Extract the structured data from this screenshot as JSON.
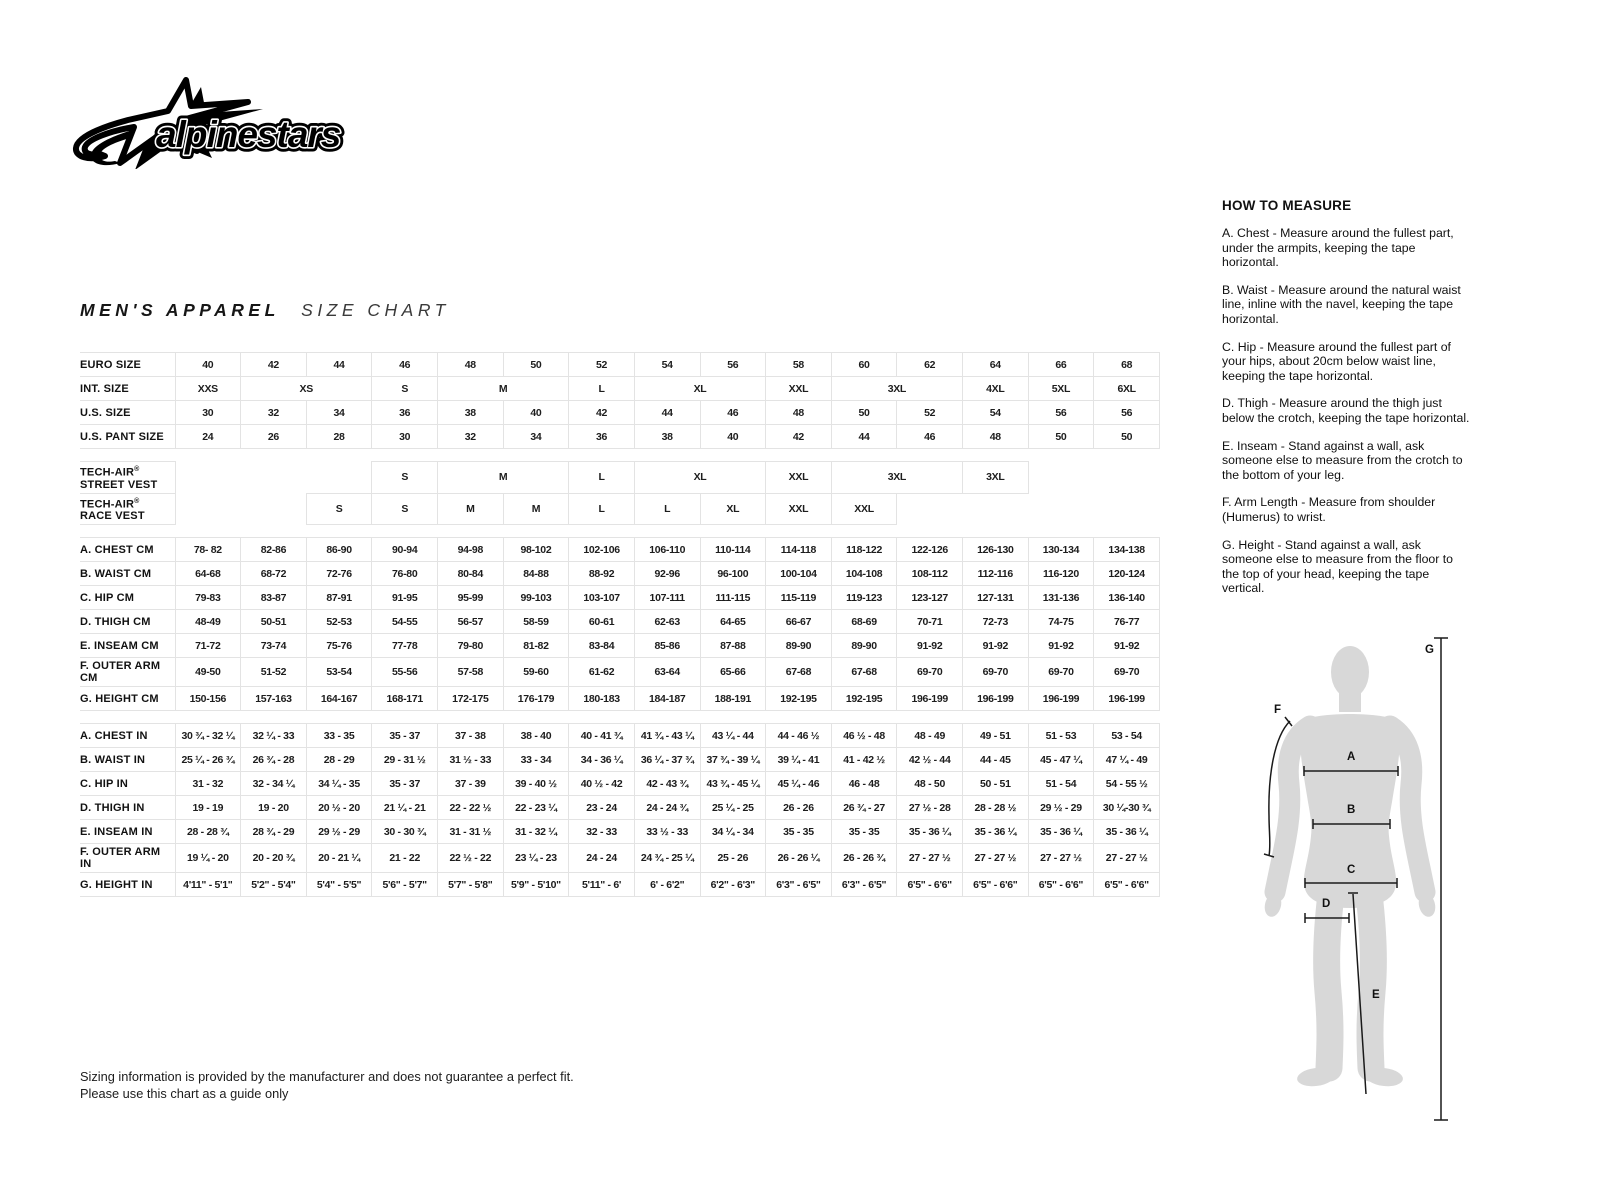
{
  "brand": {
    "logo_text": "alpinestars"
  },
  "title": {
    "main": "MEN'S APPAREL",
    "sub": "SIZE CHART"
  },
  "size_table": {
    "rows": [
      {
        "label": "EURO SIZE",
        "cells": [
          {
            "t": "40"
          },
          {
            "t": "42"
          },
          {
            "t": "44"
          },
          {
            "t": "46"
          },
          {
            "t": "48"
          },
          {
            "t": "50"
          },
          {
            "t": "52"
          },
          {
            "t": "54"
          },
          {
            "t": "56"
          },
          {
            "t": "58"
          },
          {
            "t": "60"
          },
          {
            "t": "62"
          },
          {
            "t": "64"
          },
          {
            "t": "66"
          },
          {
            "t": "68"
          }
        ]
      },
      {
        "label": "INT. SIZE",
        "cells": [
          {
            "t": "XXS"
          },
          {
            "t": "XS",
            "span": 2
          },
          {
            "t": "S"
          },
          {
            "t": "M",
            "span": 2
          },
          {
            "t": "L"
          },
          {
            "t": "XL",
            "span": 2
          },
          {
            "t": "XXL"
          },
          {
            "t": "3XL",
            "span": 2
          },
          {
            "t": "4XL"
          },
          {
            "t": "5XL"
          },
          {
            "t": "6XL"
          }
        ]
      },
      {
        "label": "U.S. SIZE",
        "cells": [
          {
            "t": "30"
          },
          {
            "t": "32"
          },
          {
            "t": "34"
          },
          {
            "t": "36"
          },
          {
            "t": "38"
          },
          {
            "t": "40"
          },
          {
            "t": "42"
          },
          {
            "t": "44"
          },
          {
            "t": "46"
          },
          {
            "t": "48"
          },
          {
            "t": "50"
          },
          {
            "t": "52"
          },
          {
            "t": "54"
          },
          {
            "t": "56"
          },
          {
            "t": "56"
          }
        ]
      },
      {
        "label": "U.S. PANT SIZE",
        "cells": [
          {
            "t": "24"
          },
          {
            "t": "26"
          },
          {
            "t": "28"
          },
          {
            "t": "30"
          },
          {
            "t": "32"
          },
          {
            "t": "34"
          },
          {
            "t": "36"
          },
          {
            "t": "38"
          },
          {
            "t": "40"
          },
          {
            "t": "42"
          },
          {
            "t": "44"
          },
          {
            "t": "46"
          },
          {
            "t": "48"
          },
          {
            "t": "50"
          },
          {
            "t": "50"
          }
        ]
      },
      {
        "gap": true
      },
      {
        "label": "TECH-AIR® STREET VEST",
        "cells": [
          {
            "t": "",
            "span": 3,
            "blank": true
          },
          {
            "t": "S"
          },
          {
            "t": "M",
            "span": 2
          },
          {
            "t": "L"
          },
          {
            "t": "XL",
            "span": 2
          },
          {
            "t": "XXL"
          },
          {
            "t": "3XL",
            "span": 2
          },
          {
            "t": "3XL"
          },
          {
            "t": "",
            "blank": true
          },
          {
            "t": "",
            "blank": true
          }
        ]
      },
      {
        "label": "TECH-AIR® RACE VEST",
        "cells": [
          {
            "t": "",
            "span": 2,
            "blank": true
          },
          {
            "t": "S"
          },
          {
            "t": "S"
          },
          {
            "t": "M"
          },
          {
            "t": "M"
          },
          {
            "t": "L"
          },
          {
            "t": "L"
          },
          {
            "t": "XL"
          },
          {
            "t": "XXL"
          },
          {
            "t": "XXL"
          },
          {
            "t": "",
            "span": 4,
            "blank": true
          }
        ]
      },
      {
        "gap": true
      },
      {
        "label": "A. CHEST CM",
        "cells": [
          {
            "t": "78- 82"
          },
          {
            "t": "82-86"
          },
          {
            "t": "86-90"
          },
          {
            "t": "90-94"
          },
          {
            "t": "94-98"
          },
          {
            "t": "98-102"
          },
          {
            "t": "102-106"
          },
          {
            "t": "106-110"
          },
          {
            "t": "110-114"
          },
          {
            "t": "114-118"
          },
          {
            "t": "118-122"
          },
          {
            "t": "122-126"
          },
          {
            "t": "126-130"
          },
          {
            "t": "130-134"
          },
          {
            "t": "134-138"
          }
        ]
      },
      {
        "label": "B. WAIST CM",
        "cells": [
          {
            "t": "64-68"
          },
          {
            "t": "68-72"
          },
          {
            "t": "72-76"
          },
          {
            "t": "76-80"
          },
          {
            "t": "80-84"
          },
          {
            "t": "84-88"
          },
          {
            "t": "88-92"
          },
          {
            "t": "92-96"
          },
          {
            "t": "96-100"
          },
          {
            "t": "100-104"
          },
          {
            "t": "104-108"
          },
          {
            "t": "108-112"
          },
          {
            "t": "112-116"
          },
          {
            "t": "116-120"
          },
          {
            "t": "120-124"
          }
        ]
      },
      {
        "label": "C. HIP CM",
        "cells": [
          {
            "t": "79-83"
          },
          {
            "t": "83-87"
          },
          {
            "t": "87-91"
          },
          {
            "t": "91-95"
          },
          {
            "t": "95-99"
          },
          {
            "t": "99-103"
          },
          {
            "t": "103-107"
          },
          {
            "t": "107-111"
          },
          {
            "t": "111-115"
          },
          {
            "t": "115-119"
          },
          {
            "t": "119-123"
          },
          {
            "t": "123-127"
          },
          {
            "t": "127-131"
          },
          {
            "t": "131-136"
          },
          {
            "t": "136-140"
          }
        ]
      },
      {
        "label": "D. THIGH CM",
        "cells": [
          {
            "t": "48-49"
          },
          {
            "t": "50-51"
          },
          {
            "t": "52-53"
          },
          {
            "t": "54-55"
          },
          {
            "t": "56-57"
          },
          {
            "t": "58-59"
          },
          {
            "t": "60-61"
          },
          {
            "t": "62-63"
          },
          {
            "t": "64-65"
          },
          {
            "t": "66-67"
          },
          {
            "t": "68-69"
          },
          {
            "t": "70-71"
          },
          {
            "t": "72-73"
          },
          {
            "t": "74-75"
          },
          {
            "t": "76-77"
          }
        ]
      },
      {
        "label": "E. INSEAM CM",
        "cells": [
          {
            "t": "71-72"
          },
          {
            "t": "73-74"
          },
          {
            "t": "75-76"
          },
          {
            "t": "77-78"
          },
          {
            "t": "79-80"
          },
          {
            "t": "81-82"
          },
          {
            "t": "83-84"
          },
          {
            "t": "85-86"
          },
          {
            "t": "87-88"
          },
          {
            "t": "89-90"
          },
          {
            "t": "89-90"
          },
          {
            "t": "91-92"
          },
          {
            "t": "91-92"
          },
          {
            "t": "91-92"
          },
          {
            "t": "91-92"
          }
        ]
      },
      {
        "label": "F. OUTER ARM CM",
        "cells": [
          {
            "t": "49-50"
          },
          {
            "t": "51-52"
          },
          {
            "t": "53-54"
          },
          {
            "t": "55-56"
          },
          {
            "t": "57-58"
          },
          {
            "t": "59-60"
          },
          {
            "t": "61-62"
          },
          {
            "t": "63-64"
          },
          {
            "t": "65-66"
          },
          {
            "t": "67-68"
          },
          {
            "t": "67-68"
          },
          {
            "t": "69-70"
          },
          {
            "t": "69-70"
          },
          {
            "t": "69-70"
          },
          {
            "t": "69-70"
          }
        ]
      },
      {
        "label": "G. HEIGHT CM",
        "cells": [
          {
            "t": "150-156"
          },
          {
            "t": "157-163"
          },
          {
            "t": "164-167"
          },
          {
            "t": "168-171"
          },
          {
            "t": "172-175"
          },
          {
            "t": "176-179"
          },
          {
            "t": "180-183"
          },
          {
            "t": "184-187"
          },
          {
            "t": "188-191"
          },
          {
            "t": "192-195"
          },
          {
            "t": "192-195"
          },
          {
            "t": "196-199"
          },
          {
            "t": "196-199"
          },
          {
            "t": "196-199"
          },
          {
            "t": "196-199"
          }
        ]
      },
      {
        "gap": true
      },
      {
        "label": "A. CHEST IN",
        "cells": [
          {
            "t": "30 ¾ - 32 ¼"
          },
          {
            "t": "32 ¼ - 33"
          },
          {
            "t": "33  - 35"
          },
          {
            "t": "35  - 37"
          },
          {
            "t": "37 - 38"
          },
          {
            "t": "38  - 40"
          },
          {
            "t": "40  - 41 ¾"
          },
          {
            "t": "41 ¾ - 43 ¼"
          },
          {
            "t": "43 ¼ - 44"
          },
          {
            "t": "44  - 46 ½"
          },
          {
            "t": "46 ½ - 48"
          },
          {
            "t": "48 - 49"
          },
          {
            "t": "49  - 51"
          },
          {
            "t": "51 - 53"
          },
          {
            "t": "53  - 54"
          }
        ]
      },
      {
        "label": "B. WAIST IN",
        "cells": [
          {
            "t": "25 ¼ - 26 ¾"
          },
          {
            "t": "26 ¾ - 28"
          },
          {
            "t": "28  - 29"
          },
          {
            "t": "29  - 31 ½"
          },
          {
            "t": "31 ½ - 33"
          },
          {
            "t": "33  - 34"
          },
          {
            "t": "34  - 36 ¼"
          },
          {
            "t": "36 ¼ - 37 ¾"
          },
          {
            "t": "37 ¾ - 39 ¼"
          },
          {
            "t": "39 ¼ - 41"
          },
          {
            "t": "41 - 42 ½"
          },
          {
            "t": "42 ½ - 44"
          },
          {
            "t": "44  - 45"
          },
          {
            "t": "45  - 47 ¼"
          },
          {
            "t": "47 ¼ - 49"
          }
        ]
      },
      {
        "label": "C. HIP IN",
        "cells": [
          {
            "t": "31  - 32"
          },
          {
            "t": "32  - 34 ¼"
          },
          {
            "t": "34 ¼ - 35"
          },
          {
            "t": "35  - 37"
          },
          {
            "t": "37  - 39"
          },
          {
            "t": "39 - 40 ½"
          },
          {
            "t": "40 ½ - 42"
          },
          {
            "t": "42  - 43 ¾"
          },
          {
            "t": "43 ¾ - 45 ¼"
          },
          {
            "t": "45 ¼ - 46"
          },
          {
            "t": "46  - 48"
          },
          {
            "t": "48  - 50"
          },
          {
            "t": "50 - 51"
          },
          {
            "t": "51  - 54"
          },
          {
            "t": "54  - 55 ½"
          }
        ]
      },
      {
        "label": "D. THIGH IN",
        "cells": [
          {
            "t": "19  - 19"
          },
          {
            "t": "19  - 20"
          },
          {
            "t": "20 ½ - 20"
          },
          {
            "t": "21 ¼ - 21"
          },
          {
            "t": "22 - 22 ½"
          },
          {
            "t": "22  - 23 ¼"
          },
          {
            "t": "23  - 24"
          },
          {
            "t": "24  - 24 ¾"
          },
          {
            "t": "25 ¼ - 25"
          },
          {
            "t": "26 - 26"
          },
          {
            "t": "26 ¾ - 27"
          },
          {
            "t": "27 ½ - 28"
          },
          {
            "t": "28  - 28 ½"
          },
          {
            "t": "29 ½ - 29"
          },
          {
            "t": "30 ¼-30 ¾"
          }
        ]
      },
      {
        "label": "E. INSEAM IN",
        "cells": [
          {
            "t": "28 - 28 ¾"
          },
          {
            "t": "28 ¾ - 29"
          },
          {
            "t": "29 ½ - 29"
          },
          {
            "t": "30  - 30 ¾"
          },
          {
            "t": "31  - 31 ½"
          },
          {
            "t": "31  - 32 ¼"
          },
          {
            "t": "32  - 33"
          },
          {
            "t": "33 ½ - 33"
          },
          {
            "t": "34 ¼ - 34"
          },
          {
            "t": "35 - 35"
          },
          {
            "t": "35 - 35"
          },
          {
            "t": "35  - 36 ¼"
          },
          {
            "t": "35  - 36 ¼"
          },
          {
            "t": "35  - 36 ¼"
          },
          {
            "t": "35  - 36 ¼"
          }
        ]
      },
      {
        "label": "F. OUTER ARM IN",
        "cells": [
          {
            "t": "19 ¼ - 20"
          },
          {
            "t": "20  - 20 ¾"
          },
          {
            "t": "20  - 21 ¼"
          },
          {
            "t": "21  - 22"
          },
          {
            "t": "22 ½ - 22"
          },
          {
            "t": "23 ¼ - 23"
          },
          {
            "t": "24 - 24"
          },
          {
            "t": "24 ¾ - 25 ¼"
          },
          {
            "t": "25  - 26"
          },
          {
            "t": "26  - 26 ¼"
          },
          {
            "t": "26  - 26 ¾"
          },
          {
            "t": "27  - 27 ½"
          },
          {
            "t": "27  - 27 ½"
          },
          {
            "t": "27  - 27 ½"
          },
          {
            "t": "27  - 27 ½"
          }
        ]
      },
      {
        "label": "G. HEIGHT IN",
        "cells": [
          {
            "t": "4'11\" - 5'1\""
          },
          {
            "t": "5'2\" - 5'4\""
          },
          {
            "t": "5'4\" - 5'5\""
          },
          {
            "t": "5'6\" - 5'7\""
          },
          {
            "t": "5'7\" - 5'8\""
          },
          {
            "t": "5'9\" - 5'10\""
          },
          {
            "t": "5'11\" - 6'"
          },
          {
            "t": "6' - 6'2\""
          },
          {
            "t": "6'2\" - 6'3\""
          },
          {
            "t": "6'3\" - 6'5\""
          },
          {
            "t": "6'3\" - 6'5\""
          },
          {
            "t": "6'5\" - 6'6\""
          },
          {
            "t": "6'5\" - 6'6\""
          },
          {
            "t": "6'5\" - 6'6\""
          },
          {
            "t": "6'5\" - 6'6\""
          }
        ]
      }
    ]
  },
  "how_to_measure": {
    "heading": "HOW TO MEASURE",
    "items": [
      "A. Chest - Measure around the fullest part, under the armpits, keeping the tape horizontal.",
      "B. Waist - Measure around the natural waist line, inline with the navel, keeping the tape horizontal.",
      "C. Hip - Measure around the fullest part of your hips, about 20cm below waist line, keeping the tape horizontal.",
      "D. Thigh - Measure around the thigh just below the crotch, keeping the tape horizontal.",
      "E. Inseam - Stand against a wall, ask someone else to measure from the crotch to the bottom of your leg.",
      "F. Arm Length - Measure from shoulder (Humerus) to wrist.",
      "G. Height - Stand against a wall, ask someone else to measure from the floor to the top of your head, keeping the tape vertical."
    ]
  },
  "diagram": {
    "label_a": "A",
    "label_b": "B",
    "label_c": "C",
    "label_d": "D",
    "label_e": "E",
    "label_f": "F",
    "label_g": "G",
    "body_fill": "#d8d8d8",
    "line_color": "#1a1a1a"
  },
  "footer": {
    "line1": "Sizing information is provided by the manufacturer and does not guarantee a perfect fit.",
    "line2": "Please use this chart as a guide only"
  }
}
